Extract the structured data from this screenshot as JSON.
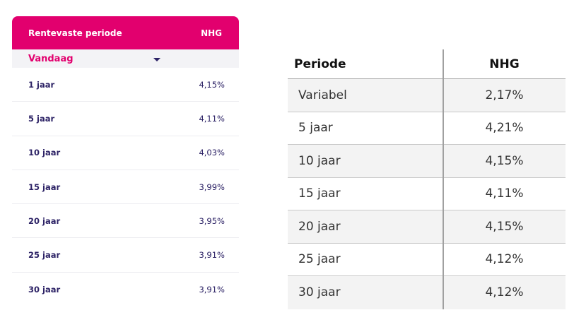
{
  "left_table": {
    "header": {
      "period_label": "Rentevaste periode",
      "nhg_label": "NHG"
    },
    "selector": {
      "value": "Vandaag"
    },
    "rows": [
      {
        "period": "1 jaar",
        "rate": "4,15%"
      },
      {
        "period": "5 jaar",
        "rate": "4,11%"
      },
      {
        "period": "10 jaar",
        "rate": "4,03%"
      },
      {
        "period": "15 jaar",
        "rate": "3,99%"
      },
      {
        "period": "20 jaar",
        "rate": "3,95%"
      },
      {
        "period": "25 jaar",
        "rate": "3,91%"
      },
      {
        "period": "30 jaar",
        "rate": "3,91%"
      }
    ]
  },
  "right_table": {
    "header": {
      "period_label": "Periode",
      "nhg_label": "NHG"
    },
    "rows": [
      {
        "period": "Variabel",
        "rate": "2,17%"
      },
      {
        "period": "5 jaar",
        "rate": "4,21%"
      },
      {
        "period": "10 jaar",
        "rate": "4,15%"
      },
      {
        "period": "15 jaar",
        "rate": "4,11%"
      },
      {
        "period": "20 jaar",
        "rate": "4,15%"
      },
      {
        "period": "25 jaar",
        "rate": "4,12%"
      },
      {
        "period": "30 jaar",
        "rate": "4,12%"
      }
    ]
  },
  "colors": {
    "brand_pink": "#e2006e",
    "dark_purple": "#2d2366"
  },
  "icons": {
    "selector_caret": "caret-down-icon"
  }
}
